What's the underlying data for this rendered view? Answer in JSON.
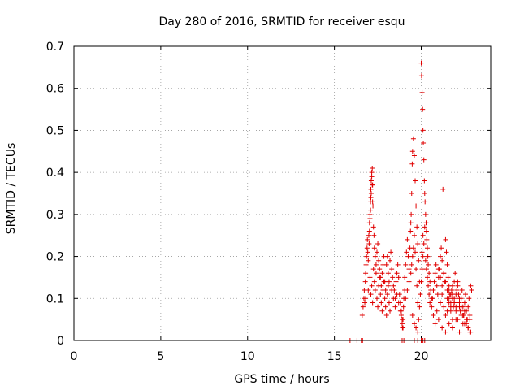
{
  "chart_data": {
    "type": "scatter",
    "title": "Day 280 of 2016, SRMTID for receiver esqu",
    "xlabel": "GPS time / hours",
    "ylabel": "SRMTID / TECUs",
    "xlim": [
      0,
      24
    ],
    "ylim": [
      0,
      0.7
    ],
    "grid": true,
    "marker": "+",
    "series_color": "#e00000",
    "xticks": [
      0,
      5,
      10,
      15,
      20
    ],
    "xtick_labels": [
      "0",
      "5",
      "10",
      "15",
      "20"
    ],
    "yticks": [
      0,
      0.1,
      0.2,
      0.3,
      0.4,
      0.5,
      0.6,
      0.7
    ],
    "ytick_labels": [
      "0",
      "0.1",
      "0.2",
      "0.3",
      "0.4",
      "0.5",
      "0.6",
      "0.7"
    ],
    "series": [
      {
        "name": "SRMTID",
        "x": [
          15.9,
          16.3,
          16.55,
          16.62,
          16.6,
          16.65,
          16.7,
          16.72,
          16.75,
          16.78,
          16.8,
          16.82,
          16.85,
          16.88,
          16.9,
          16.92,
          16.95,
          16.98,
          17.0,
          17.02,
          17.05,
          17.08,
          17.1,
          17.12,
          17.15,
          17.18,
          17.2,
          17.22,
          17.25,
          17.28,
          17.3,
          17.35,
          17.4,
          17.45,
          17.5,
          17.55,
          17.6,
          17.65,
          17.7,
          17.75,
          17.8,
          17.85,
          17.9,
          17.95,
          16.8,
          16.95,
          17.05,
          17.1,
          17.15,
          17.2,
          17.25,
          17.3,
          17.35,
          17.4,
          17.45,
          17.5,
          17.55,
          17.6,
          17.65,
          17.7,
          17.75,
          17.8,
          17.85,
          17.9,
          17.95,
          18.0,
          18.05,
          18.1,
          18.15,
          18.2,
          17.02,
          17.05,
          17.08,
          17.1,
          17.12,
          17.15,
          17.18,
          17.2,
          18.0,
          18.05,
          18.1,
          18.15,
          18.2,
          18.25,
          18.3,
          18.35,
          18.4,
          18.45,
          18.5,
          18.55,
          18.6,
          18.65,
          18.7,
          18.75,
          18.8,
          18.85,
          18.9,
          18.95,
          18.3,
          18.4,
          18.5,
          18.6,
          18.7,
          18.8,
          18.85,
          18.9,
          18.92,
          18.95,
          18.98,
          19.0,
          19.05,
          19.05,
          19.1,
          19.15,
          19.2,
          19.25,
          19.3,
          19.35,
          19.38,
          19.4,
          19.42,
          19.45,
          19.48,
          19.5,
          19.55,
          19.6,
          19.65,
          19.7,
          19.75,
          19.8,
          19.85,
          19.9,
          19.1,
          19.2,
          19.3,
          19.4,
          19.45,
          19.5,
          19.55,
          19.6,
          19.65,
          19.7,
          19.75,
          19.8,
          19.5,
          19.6,
          19.7,
          19.8,
          19.85,
          19.9,
          19.95,
          20.0,
          20.05,
          20.1,
          20.0,
          20.02,
          20.05,
          20.08,
          20.1,
          20.12,
          20.15,
          20.18,
          20.2,
          20.22,
          20.25,
          20.28,
          20.3,
          20.32,
          20.35,
          20.38,
          20.4,
          20.45,
          20.5,
          20.55,
          20.6,
          20.05,
          20.1,
          20.15,
          20.2,
          20.25,
          20.3,
          20.35,
          20.4,
          20.45,
          20.5,
          20.6,
          20.65,
          20.7,
          20.75,
          20.8,
          20.85,
          20.9,
          20.95,
          21.0,
          21.05,
          21.1,
          21.15,
          21.2,
          21.25,
          21.3,
          21.35,
          21.4,
          21.45,
          21.5,
          21.55,
          21.6,
          21.65,
          21.7,
          21.75,
          21.8,
          21.85,
          21.9,
          21.95,
          20.7,
          20.8,
          20.9,
          21.0,
          21.1,
          21.2,
          21.3,
          21.4,
          21.5,
          21.6,
          21.7,
          21.8,
          21.9,
          22.0,
          22.1,
          22.2,
          22.3,
          22.4,
          22.5,
          21.2,
          21.4,
          21.6,
          21.8,
          22.0,
          22.2,
          22.4,
          22.6,
          22.7,
          22.8,
          22.85,
          21.5,
          21.6,
          21.7,
          21.8,
          21.9,
          22.0,
          22.05,
          22.1,
          22.15,
          22.2,
          22.25,
          22.3,
          22.35,
          22.4,
          22.45,
          22.5,
          22.55,
          22.6,
          22.65,
          22.7,
          22.75,
          22.8,
          22.85,
          22.9,
          21.0,
          21.1,
          21.2,
          21.3,
          21.4,
          21.5,
          21.6,
          21.7,
          21.8,
          21.9,
          22.0,
          22.1,
          22.2,
          22.3,
          22.4,
          22.5,
          22.6,
          22.7,
          22.8,
          18.9,
          19.0,
          19.6,
          19.8,
          20.0,
          20.1,
          20.2
        ],
        "y": [
          0.0,
          0.0,
          0.0,
          0.0,
          0.06,
          0.08,
          0.1,
          0.12,
          0.09,
          0.14,
          0.16,
          0.18,
          0.2,
          0.22,
          0.24,
          0.21,
          0.19,
          0.25,
          0.23,
          0.28,
          0.3,
          0.33,
          0.36,
          0.38,
          0.4,
          0.41,
          0.37,
          0.32,
          0.27,
          0.25,
          0.22,
          0.2,
          0.18,
          0.21,
          0.23,
          0.19,
          0.17,
          0.15,
          0.13,
          0.16,
          0.18,
          0.2,
          0.14,
          0.12,
          0.1,
          0.12,
          0.15,
          0.11,
          0.13,
          0.09,
          0.17,
          0.14,
          0.12,
          0.16,
          0.1,
          0.08,
          0.13,
          0.15,
          0.11,
          0.09,
          0.07,
          0.12,
          0.14,
          0.1,
          0.08,
          0.06,
          0.11,
          0.13,
          0.09,
          0.07,
          0.26,
          0.29,
          0.31,
          0.34,
          0.35,
          0.39,
          0.37,
          0.33,
          0.18,
          0.2,
          0.16,
          0.14,
          0.19,
          0.21,
          0.17,
          0.15,
          0.13,
          0.12,
          0.1,
          0.14,
          0.16,
          0.18,
          0.15,
          0.11,
          0.09,
          0.07,
          0.05,
          0.03,
          0.12,
          0.1,
          0.08,
          0.11,
          0.09,
          0.07,
          0.06,
          0.04,
          0.03,
          0.05,
          0.08,
          0.1,
          0.12,
          0.15,
          0.18,
          0.21,
          0.24,
          0.2,
          0.17,
          0.22,
          0.26,
          0.28,
          0.3,
          0.35,
          0.42,
          0.45,
          0.48,
          0.44,
          0.38,
          0.32,
          0.27,
          0.23,
          0.19,
          0.14,
          0.1,
          0.12,
          0.14,
          0.16,
          0.18,
          0.2,
          0.22,
          0.25,
          0.21,
          0.17,
          0.13,
          0.09,
          0.06,
          0.04,
          0.03,
          0.02,
          0.05,
          0.08,
          0.11,
          0.14,
          0.17,
          0.2,
          0.66,
          0.63,
          0.59,
          0.55,
          0.5,
          0.47,
          0.43,
          0.38,
          0.35,
          0.33,
          0.3,
          0.28,
          0.26,
          0.24,
          0.22,
          0.2,
          0.18,
          0.16,
          0.14,
          0.12,
          0.1,
          0.21,
          0.25,
          0.23,
          0.27,
          0.19,
          0.17,
          0.15,
          0.13,
          0.11,
          0.09,
          0.08,
          0.1,
          0.12,
          0.14,
          0.16,
          0.18,
          0.13,
          0.11,
          0.15,
          0.17,
          0.2,
          0.22,
          0.19,
          0.36,
          0.16,
          0.14,
          0.24,
          0.21,
          0.18,
          0.15,
          0.13,
          0.11,
          0.09,
          0.12,
          0.1,
          0.08,
          0.14,
          0.16,
          0.06,
          0.04,
          0.07,
          0.05,
          0.09,
          0.11,
          0.08,
          0.06,
          0.1,
          0.12,
          0.07,
          0.05,
          0.09,
          0.11,
          0.13,
          0.1,
          0.08,
          0.06,
          0.04,
          0.03,
          0.02,
          0.04,
          0.03,
          0.05,
          0.02,
          0.06,
          0.04,
          0.03,
          0.05,
          0.02,
          0.07,
          0.09,
          0.11,
          0.13,
          0.1,
          0.08,
          0.12,
          0.14,
          0.11,
          0.09,
          0.07,
          0.1,
          0.12,
          0.08,
          0.06,
          0.09,
          0.11,
          0.07,
          0.05,
          0.08,
          0.1,
          0.06,
          0.13,
          0.12,
          0.17,
          0.15,
          0.13,
          0.16,
          0.14,
          0.12,
          0.1,
          0.08,
          0.11,
          0.09,
          0.07,
          0.05,
          0.08,
          0.06,
          0.04,
          0.07,
          0.05,
          0.03,
          0.02,
          0.0,
          0.0,
          0.0,
          0.0,
          0.0,
          0.0,
          0.0
        ]
      }
    ]
  }
}
